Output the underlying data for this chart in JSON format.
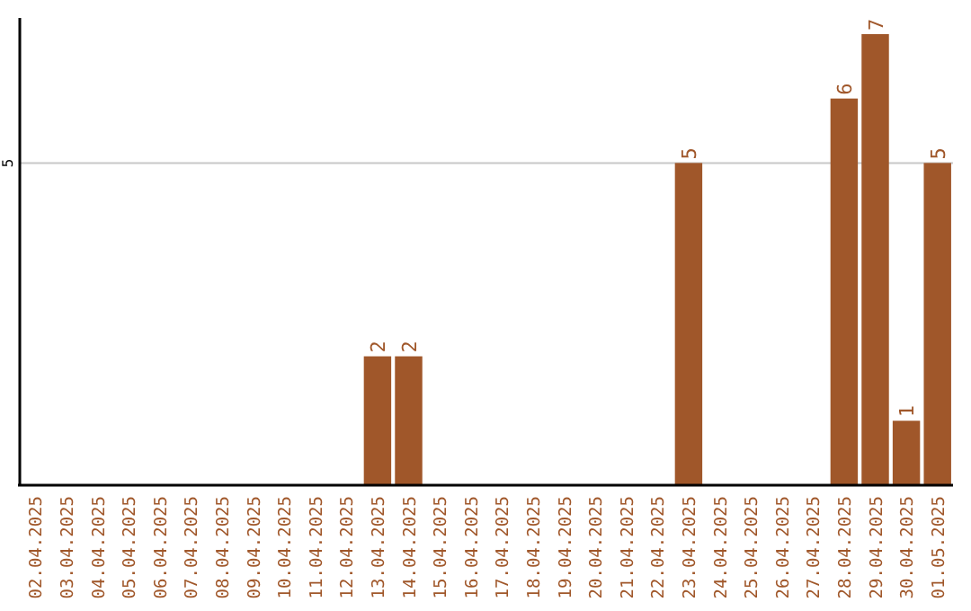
{
  "chart_data": {
    "type": "bar",
    "categories": [
      "02.04.2025",
      "03.04.2025",
      "04.04.2025",
      "05.04.2025",
      "06.04.2025",
      "07.04.2025",
      "08.04.2025",
      "09.04.2025",
      "10.04.2025",
      "11.04.2025",
      "12.04.2025",
      "13.04.2025",
      "14.04.2025",
      "15.04.2025",
      "16.04.2025",
      "17.04.2025",
      "18.04.2025",
      "19.04.2025",
      "20.04.2025",
      "21.04.2025",
      "22.04.2025",
      "23.04.2025",
      "24.04.2025",
      "25.04.2025",
      "26.04.2025",
      "27.04.2025",
      "28.04.2025",
      "29.04.2025",
      "30.04.2025",
      "01.05.2025"
    ],
    "values": [
      0,
      0,
      0,
      0,
      0,
      0,
      0,
      0,
      0,
      0,
      0,
      2,
      2,
      0,
      0,
      0,
      0,
      0,
      0,
      0,
      0,
      5,
      0,
      0,
      0,
      0,
      6,
      7,
      1,
      5
    ],
    "color": "#a0572a",
    "value_labels": [
      null,
      null,
      null,
      null,
      null,
      null,
      null,
      null,
      null,
      null,
      null,
      "2",
      "2",
      null,
      null,
      null,
      null,
      null,
      null,
      null,
      null,
      "5",
      null,
      null,
      null,
      null,
      "6",
      "7",
      "1",
      "5"
    ],
    "ylim": [
      0,
      7.25
    ],
    "yticks": [
      5
    ],
    "grid": "y"
  }
}
